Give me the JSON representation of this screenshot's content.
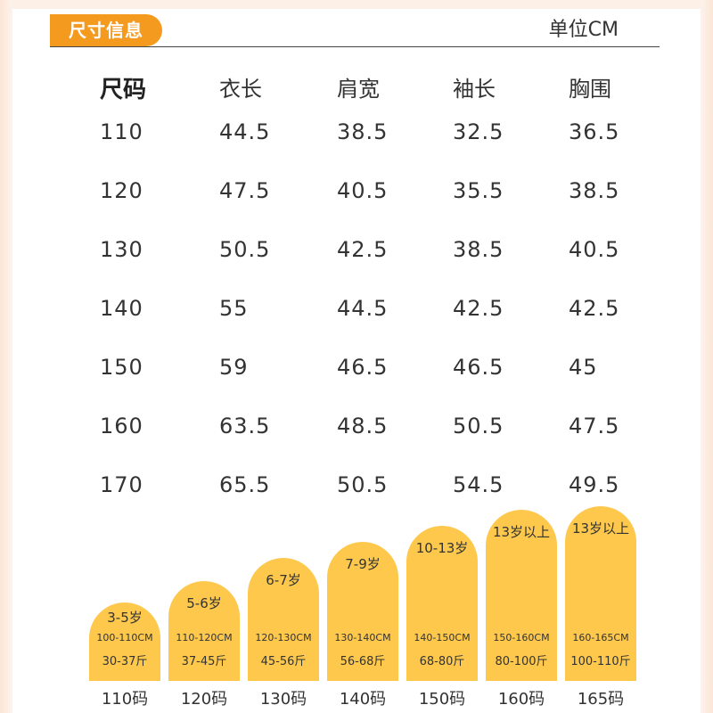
{
  "header": {
    "title": "尺寸信息",
    "unit": "单位CM",
    "accent_color": "#f49a1e"
  },
  "table": {
    "columns": [
      "尺码",
      "衣长",
      "肩宽",
      "袖长",
      "胸围"
    ],
    "rows": [
      [
        "110",
        "44.5",
        "38.5",
        "32.5",
        "36.5"
      ],
      [
        "120",
        "47.5",
        "40.5",
        "35.5",
        "38.5"
      ],
      [
        "130",
        "50.5",
        "42.5",
        "38.5",
        "40.5"
      ],
      [
        "140",
        "55",
        "44.5",
        "42.5",
        "42.5"
      ],
      [
        "150",
        "59",
        "46.5",
        "46.5",
        "45"
      ],
      [
        "160",
        "63.5",
        "48.5",
        "50.5",
        "47.5"
      ],
      [
        "170",
        "65.5",
        "50.5",
        "54.5",
        "49.5"
      ]
    ]
  },
  "size_guide": {
    "bar_color": "#fdc84c",
    "items": [
      {
        "age": "3-5岁",
        "height": "100-110CM",
        "weight": "30-37斤",
        "size": "110码"
      },
      {
        "age": "5-6岁",
        "height": "110-120CM",
        "weight": "37-45斤",
        "size": "120码"
      },
      {
        "age": "6-7岁",
        "height": "120-130CM",
        "weight": "45-56斤",
        "size": "130码"
      },
      {
        "age": "7-9岁",
        "height": "130-140CM",
        "weight": "56-68斤",
        "size": "140码"
      },
      {
        "age": "10-13岁",
        "height": "140-150CM",
        "weight": "68-80斤",
        "size": "150码"
      },
      {
        "age": "13岁以上",
        "height": "150-160CM",
        "weight": "80-100斤",
        "size": "160码"
      },
      {
        "age": "13岁以上",
        "height": "160-165CM",
        "weight": "100-110斤",
        "size": "165码"
      }
    ]
  }
}
